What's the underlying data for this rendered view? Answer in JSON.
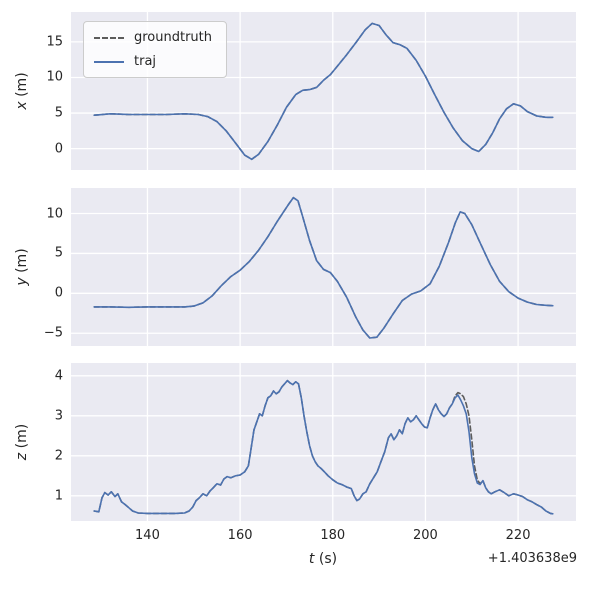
{
  "figure": {
    "background": "#ffffff",
    "axes_background": "#eaeaf2",
    "grid_color": "#ffffff",
    "tick_color": "#262626"
  },
  "legend": {
    "items": [
      {
        "label": "groundtruth",
        "color": "#5c5c5c",
        "style": "dashed"
      },
      {
        "label": "traj",
        "color": "#4c72b0",
        "style": "solid"
      }
    ]
  },
  "xaxis": {
    "label_var": "t",
    "label_unit": "(s)",
    "offset_text": "+1.403638e9",
    "ticks": [
      140,
      160,
      180,
      200,
      220
    ]
  },
  "chart_data": [
    {
      "type": "line",
      "ylabel_var": "x",
      "ylabel_unit": "(m)",
      "xlim": [
        123.5,
        232.5
      ],
      "ylim": [
        -3.0,
        19.2
      ],
      "xticks": [
        140,
        160,
        180,
        200,
        220
      ],
      "yticks": [
        0,
        5,
        10,
        15
      ],
      "show_xtick_labels": false,
      "series": [
        {
          "name": "groundtruth",
          "color": "#5c5c5c",
          "dash": "5 3",
          "x": [
            128.5,
            132,
            136,
            140,
            144,
            148,
            151,
            153,
            155,
            157,
            159,
            161,
            162.5,
            164,
            166,
            168,
            170,
            172,
            173.5,
            175,
            176.5,
            178,
            179.5,
            181,
            183,
            185,
            187,
            188.5,
            190,
            191.5,
            193,
            194.5,
            196,
            198,
            200,
            202,
            204,
            206,
            208,
            210,
            211.5,
            213,
            214.5,
            216,
            217.5,
            219,
            220.5,
            222,
            224,
            226,
            227.5
          ],
          "y": [
            4.7,
            4.9,
            4.8,
            4.8,
            4.8,
            4.9,
            4.8,
            4.5,
            3.8,
            2.5,
            0.8,
            -0.9,
            -1.5,
            -0.8,
            1.0,
            3.3,
            5.8,
            7.6,
            8.2,
            8.3,
            8.6,
            9.6,
            10.4,
            11.6,
            13.2,
            14.9,
            16.7,
            17.6,
            17.3,
            16.0,
            14.9,
            14.6,
            14.1,
            12.4,
            10.2,
            7.6,
            5.1,
            2.9,
            1.1,
            0.0,
            -0.4,
            0.6,
            2.2,
            4.2,
            5.6,
            6.3,
            6.0,
            5.2,
            4.6,
            4.4,
            4.4
          ]
        },
        {
          "name": "traj",
          "color": "#4c72b0",
          "dash": "",
          "x": [
            128.5,
            132,
            136,
            140,
            144,
            148,
            151,
            153,
            155,
            157,
            159,
            161,
            162.5,
            164,
            166,
            168,
            170,
            172,
            173.5,
            175,
            176.5,
            178,
            179.5,
            181,
            183,
            185,
            187,
            188.5,
            190,
            191.5,
            193,
            194.5,
            196,
            198,
            200,
            202,
            204,
            206,
            208,
            210,
            211.5,
            213,
            214.5,
            216,
            217.5,
            219,
            220.5,
            222,
            224,
            226,
            227.5
          ],
          "y": [
            4.7,
            4.9,
            4.8,
            4.8,
            4.8,
            4.9,
            4.8,
            4.5,
            3.8,
            2.5,
            0.8,
            -0.9,
            -1.5,
            -0.8,
            1.0,
            3.3,
            5.8,
            7.6,
            8.2,
            8.3,
            8.6,
            9.6,
            10.4,
            11.6,
            13.2,
            14.9,
            16.7,
            17.6,
            17.3,
            16.0,
            14.9,
            14.6,
            14.1,
            12.4,
            10.2,
            7.6,
            5.1,
            2.9,
            1.1,
            0.0,
            -0.4,
            0.6,
            2.2,
            4.2,
            5.6,
            6.3,
            6.0,
            5.2,
            4.6,
            4.4,
            4.4
          ]
        }
      ]
    },
    {
      "type": "line",
      "ylabel_var": "y",
      "ylabel_unit": "(m)",
      "xlim": [
        123.5,
        232.5
      ],
      "ylim": [
        -6.6,
        13.2
      ],
      "xticks": [
        140,
        160,
        180,
        200,
        220
      ],
      "yticks": [
        -5,
        0,
        5,
        10
      ],
      "show_xtick_labels": false,
      "series": [
        {
          "name": "groundtruth",
          "color": "#5c5c5c",
          "dash": "5 3",
          "x": [
            128.5,
            132,
            136,
            140,
            144,
            148,
            150,
            152,
            154,
            156,
            158,
            160,
            162,
            164,
            166,
            168,
            169.5,
            170.5,
            171.5,
            172.5,
            173.5,
            175,
            176.5,
            178,
            179.5,
            181,
            183,
            185,
            186.5,
            188,
            189.5,
            191,
            193,
            195,
            197,
            199,
            201,
            203,
            205,
            206.5,
            207.5,
            208.5,
            210,
            212,
            214,
            216,
            218,
            220,
            222,
            224,
            226,
            227.5
          ],
          "y": [
            -1.7,
            -1.7,
            -1.75,
            -1.7,
            -1.7,
            -1.7,
            -1.6,
            -1.2,
            -0.3,
            1.0,
            2.1,
            2.9,
            4.0,
            5.4,
            7.1,
            9.0,
            10.3,
            11.2,
            12.0,
            11.6,
            9.6,
            6.6,
            4.1,
            3.0,
            2.6,
            1.5,
            -0.5,
            -3.0,
            -4.6,
            -5.6,
            -5.5,
            -4.4,
            -2.6,
            -0.9,
            -0.1,
            0.3,
            1.2,
            3.4,
            6.4,
            8.9,
            10.2,
            10.0,
            8.6,
            6.1,
            3.6,
            1.5,
            0.2,
            -0.6,
            -1.1,
            -1.4,
            -1.5,
            -1.55
          ]
        },
        {
          "name": "traj",
          "color": "#4c72b0",
          "dash": "",
          "x": [
            128.5,
            132,
            136,
            140,
            144,
            148,
            150,
            152,
            154,
            156,
            158,
            160,
            162,
            164,
            166,
            168,
            169.5,
            170.5,
            171.5,
            172.5,
            173.5,
            175,
            176.5,
            178,
            179.5,
            181,
            183,
            185,
            186.5,
            188,
            189.5,
            191,
            193,
            195,
            197,
            199,
            201,
            203,
            205,
            206.5,
            207.5,
            208.5,
            210,
            212,
            214,
            216,
            218,
            220,
            222,
            224,
            226,
            227.5
          ],
          "y": [
            -1.7,
            -1.7,
            -1.75,
            -1.7,
            -1.7,
            -1.7,
            -1.6,
            -1.2,
            -0.3,
            1.0,
            2.1,
            2.9,
            4.0,
            5.4,
            7.1,
            9.0,
            10.3,
            11.2,
            12.0,
            11.6,
            9.6,
            6.6,
            4.1,
            3.0,
            2.6,
            1.5,
            -0.5,
            -3.0,
            -4.6,
            -5.6,
            -5.5,
            -4.4,
            -2.6,
            -0.9,
            -0.1,
            0.3,
            1.2,
            3.4,
            6.4,
            8.9,
            10.2,
            10.0,
            8.6,
            6.1,
            3.6,
            1.5,
            0.2,
            -0.6,
            -1.1,
            -1.4,
            -1.5,
            -1.55
          ]
        }
      ]
    },
    {
      "type": "line",
      "ylabel_var": "z",
      "ylabel_unit": "(m)",
      "xlim": [
        123.5,
        232.5
      ],
      "ylim": [
        0.37,
        4.32
      ],
      "xticks": [
        140,
        160,
        180,
        200,
        220
      ],
      "yticks": [
        1,
        2,
        3,
        4
      ],
      "show_xtick_labels": true,
      "series": [
        {
          "name": "groundtruth",
          "color": "#5c5c5c",
          "dash": "5 3",
          "x": [
            128.5,
            129.5,
            130.2,
            130.8,
            131.5,
            132.2,
            133,
            133.6,
            134.4,
            135.2,
            136,
            136.8,
            138,
            140,
            142,
            144,
            146,
            148,
            149,
            149.8,
            150.5,
            151.2,
            152,
            152.8,
            153.5,
            154.2,
            155,
            155.8,
            156.5,
            157.2,
            158,
            159,
            160,
            161,
            161.8,
            162.4,
            163,
            163.6,
            164.2,
            164.8,
            165.4,
            166,
            166.6,
            167.2,
            167.8,
            168.4,
            169,
            169.6,
            170.2,
            170.8,
            171.4,
            172,
            172.6,
            173.2,
            173.8,
            174.4,
            175,
            175.6,
            176.2,
            176.8,
            177.5,
            178.2,
            179,
            180,
            181,
            182,
            183,
            184,
            184.6,
            185.2,
            185.8,
            186.5,
            187.2,
            188,
            188.8,
            189.6,
            190.4,
            191.2,
            192,
            192.6,
            193.2,
            193.8,
            194.4,
            195,
            195.6,
            196.2,
            196.8,
            197.4,
            198,
            198.6,
            199.2,
            199.8,
            200.4,
            201,
            201.6,
            202.2,
            202.8,
            203.4,
            204,
            204.6,
            205.2,
            205.8,
            206.4,
            207,
            207.6,
            208.2,
            208.8,
            209.4,
            210,
            210.6,
            211.2,
            211.8,
            212.4,
            213,
            213.6,
            214.2,
            215,
            216,
            217,
            218,
            219,
            220,
            221,
            222,
            223,
            224,
            225,
            226,
            227,
            227.5
          ],
          "y": [
            0.62,
            0.6,
            0.95,
            1.08,
            1.02,
            1.1,
            0.98,
            1.05,
            0.85,
            0.78,
            0.7,
            0.62,
            0.57,
            0.56,
            0.56,
            0.56,
            0.56,
            0.57,
            0.62,
            0.72,
            0.88,
            0.95,
            1.05,
            1.0,
            1.12,
            1.2,
            1.3,
            1.27,
            1.42,
            1.48,
            1.45,
            1.5,
            1.52,
            1.6,
            1.75,
            2.2,
            2.65,
            2.85,
            3.05,
            3.0,
            3.25,
            3.45,
            3.5,
            3.62,
            3.55,
            3.6,
            3.72,
            3.8,
            3.88,
            3.82,
            3.78,
            3.85,
            3.8,
            3.45,
            3.0,
            2.6,
            2.25,
            2.0,
            1.85,
            1.75,
            1.68,
            1.6,
            1.5,
            1.4,
            1.32,
            1.28,
            1.22,
            1.18,
            1.0,
            0.88,
            0.92,
            1.05,
            1.1,
            1.3,
            1.45,
            1.6,
            1.85,
            2.1,
            2.45,
            2.55,
            2.4,
            2.5,
            2.65,
            2.55,
            2.8,
            2.95,
            2.85,
            2.9,
            3.0,
            2.9,
            2.8,
            2.72,
            2.7,
            2.95,
            3.15,
            3.3,
            3.15,
            3.05,
            2.98,
            3.05,
            3.2,
            3.3,
            3.5,
            3.58,
            3.55,
            3.48,
            3.3,
            3.0,
            2.4,
            1.75,
            1.4,
            1.3,
            1.38,
            1.2,
            1.1,
            1.05,
            1.1,
            1.15,
            1.08,
            1.0,
            1.05,
            1.02,
            0.98,
            0.9,
            0.85,
            0.78,
            0.72,
            0.62,
            0.56,
            0.55
          ]
        },
        {
          "name": "traj",
          "color": "#4c72b0",
          "dash": "",
          "x": [
            128.5,
            129.5,
            130.2,
            130.8,
            131.5,
            132.2,
            133,
            133.6,
            134.4,
            135.2,
            136,
            136.8,
            138,
            140,
            142,
            144,
            146,
            148,
            149,
            149.8,
            150.5,
            151.2,
            152,
            152.8,
            153.5,
            154.2,
            155,
            155.8,
            156.5,
            157.2,
            158,
            159,
            160,
            161,
            161.8,
            162.4,
            163,
            163.6,
            164.2,
            164.8,
            165.4,
            166,
            166.6,
            167.2,
            167.8,
            168.4,
            169,
            169.6,
            170.2,
            170.8,
            171.4,
            172,
            172.6,
            173.2,
            173.8,
            174.4,
            175,
            175.6,
            176.2,
            176.8,
            177.5,
            178.2,
            179,
            180,
            181,
            182,
            183,
            184,
            184.6,
            185.2,
            185.8,
            186.5,
            187.2,
            188,
            188.8,
            189.6,
            190.4,
            191.2,
            192,
            192.6,
            193.2,
            193.8,
            194.4,
            195,
            195.6,
            196.2,
            196.8,
            197.4,
            198,
            198.6,
            199.2,
            199.8,
            200.4,
            201,
            201.6,
            202.2,
            202.8,
            203.4,
            204,
            204.6,
            205.2,
            205.8,
            206.4,
            207,
            207.6,
            208.2,
            208.8,
            209.4,
            210,
            210.6,
            211.2,
            211.8,
            212.4,
            213,
            213.6,
            214.2,
            215,
            216,
            217,
            218,
            219,
            220,
            221,
            222,
            223,
            224,
            225,
            226,
            227,
            227.5
          ],
          "y": [
            0.62,
            0.6,
            0.95,
            1.08,
            1.02,
            1.1,
            0.98,
            1.05,
            0.85,
            0.78,
            0.7,
            0.62,
            0.57,
            0.56,
            0.56,
            0.56,
            0.56,
            0.57,
            0.62,
            0.72,
            0.88,
            0.95,
            1.05,
            1.0,
            1.12,
            1.2,
            1.3,
            1.27,
            1.42,
            1.48,
            1.45,
            1.5,
            1.52,
            1.6,
            1.75,
            2.2,
            2.65,
            2.85,
            3.05,
            3.0,
            3.25,
            3.45,
            3.5,
            3.62,
            3.55,
            3.6,
            3.72,
            3.8,
            3.88,
            3.82,
            3.78,
            3.85,
            3.8,
            3.45,
            3.0,
            2.6,
            2.25,
            2.0,
            1.85,
            1.75,
            1.68,
            1.6,
            1.5,
            1.4,
            1.32,
            1.28,
            1.22,
            1.18,
            1.0,
            0.88,
            0.92,
            1.05,
            1.1,
            1.3,
            1.45,
            1.6,
            1.85,
            2.1,
            2.45,
            2.55,
            2.4,
            2.5,
            2.65,
            2.55,
            2.8,
            2.95,
            2.85,
            2.9,
            3.0,
            2.9,
            2.8,
            2.72,
            2.7,
            2.95,
            3.15,
            3.3,
            3.15,
            3.05,
            2.98,
            3.05,
            3.2,
            3.3,
            3.45,
            3.52,
            3.4,
            3.25,
            3.05,
            2.6,
            1.95,
            1.55,
            1.32,
            1.28,
            1.38,
            1.2,
            1.1,
            1.05,
            1.1,
            1.15,
            1.08,
            1.0,
            1.05,
            1.02,
            0.98,
            0.9,
            0.85,
            0.78,
            0.72,
            0.62,
            0.56,
            0.55
          ]
        }
      ]
    }
  ]
}
